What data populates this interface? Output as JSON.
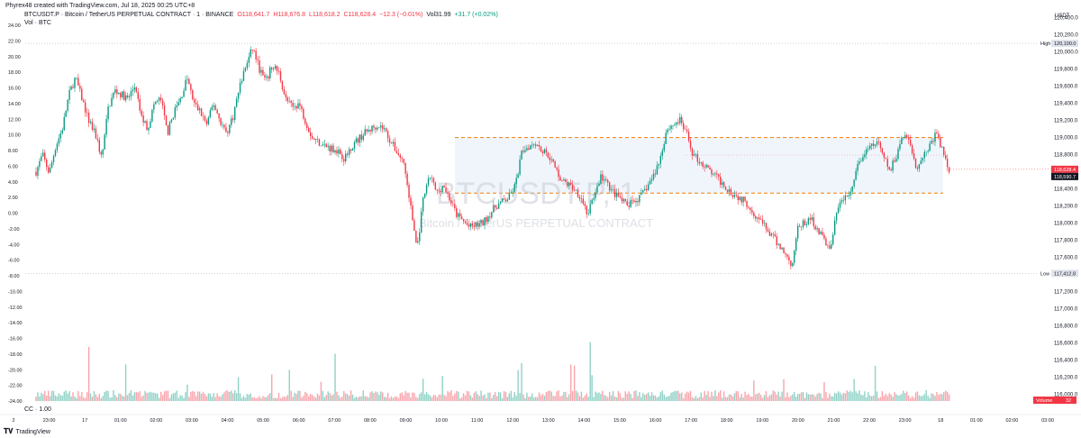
{
  "header": {
    "created_by": "Phyrex48 created with TradingView.com, Jul 18, 2025 00:25 UTC+8"
  },
  "legend": {
    "symbol": "BTCUSDT.P · Bitcoin / TetherUS PERPETUAL CONTRACT · 1 · BINANCE",
    "open": "O118,641.7",
    "high": "H118,676.8",
    "low": "L118,618.2",
    "close": "C118,628.4",
    "change": "−12.3 (−0.01%)",
    "vol": "Vol31.99",
    "vol_change": "+31.7 (+0.02%)"
  },
  "vol_legend": "Vol · BTC",
  "cc_legend": "CC · 1.00",
  "watermark": {
    "line1": "BTCUSDT.P, 1",
    "line2": "Bitcoin / TetherUS PERPETUAL CONTRACT"
  },
  "footer": {
    "logo": "TradingView"
  },
  "colors": {
    "up": "#089981",
    "down": "#f23645",
    "level": "#f57c00",
    "zone": "#e3ecf9"
  },
  "chart_data": {
    "type": "candlestick",
    "symbol": "BTCUSDT.P",
    "interval": "1",
    "exchange": "BINANCE",
    "price_axis": {
      "title": "USDT",
      "ticks": [
        "120,400.0",
        "120,200.0",
        "120,000.0",
        "119,800.0",
        "119,600.0",
        "119,400.0",
        "119,200.0",
        "119,000.0",
        "118,800.0",
        "118,600.0",
        "118,400.0",
        "118,200.0",
        "118,000.0",
        "117,800.0",
        "117,600.0",
        "117,400.0",
        "117,200.0",
        "117,000.0",
        "116,800.0",
        "116,600.0",
        "116,400.0",
        "116,200.0",
        "116,000.0"
      ],
      "ylim": [
        115,
        900,
        120,
        480
      ]
    },
    "left_axis": {
      "ticks": [
        "24.00",
        "22.00",
        "20.00",
        "18.00",
        "16.00",
        "14.00",
        "12.00",
        "10.00",
        "8.00",
        "6.00",
        "4.00",
        "2.00",
        "0.00",
        "-2.00",
        "-4.00",
        "-6.00",
        "-8.00",
        "-10.00",
        "-12.00",
        "-14.00",
        "-16.00",
        "-18.00",
        "-20.00",
        "-22.00",
        "-24.00"
      ]
    },
    "time_axis": [
      "2",
      "23:00",
      "17",
      "01:00",
      "02:00",
      "03:00",
      "04:00",
      "05:00",
      "06:00",
      "07:00",
      "08:00",
      "09:00",
      "10:00",
      "11:00",
      "12:00",
      "13:00",
      "14:00",
      "15:00",
      "16:00",
      "17:00",
      "18:00",
      "19:00",
      "20:00",
      "21:00",
      "22:00",
      "23:00",
      "18",
      "01:00",
      "02:00",
      "03:00"
    ],
    "high": {
      "label": "High",
      "value": "120,100.0"
    },
    "low": {
      "label": "Low",
      "value": "117,412.8"
    },
    "last_price": "118,628.4",
    "last_price2": "118,590.7",
    "volume_badge": {
      "label": "Volume",
      "value": "32"
    },
    "levels": [
      119000,
      118350
    ],
    "price_path": [
      [
        0,
        118600
      ],
      [
        0.5,
        118800
      ],
      [
        1,
        118580
      ],
      [
        1.5,
        118900
      ],
      [
        2,
        119100
      ],
      [
        2.5,
        119500
      ],
      [
        3,
        119700
      ],
      [
        3.5,
        119450
      ],
      [
        4,
        119200
      ],
      [
        4.6,
        119000
      ],
      [
        5,
        118750
      ],
      [
        5.5,
        119350
      ],
      [
        6,
        119550
      ],
      [
        7,
        119450
      ],
      [
        7.5,
        119600
      ],
      [
        8,
        119250
      ],
      [
        8.5,
        119100
      ],
      [
        9,
        119400
      ],
      [
        9.5,
        119450
      ],
      [
        10,
        119050
      ],
      [
        10.5,
        119300
      ],
      [
        11,
        119450
      ],
      [
        11.5,
        119700
      ],
      [
        12,
        119400
      ],
      [
        12.5,
        119300
      ],
      [
        13,
        119150
      ],
      [
        13.5,
        119400
      ],
      [
        14,
        119200
      ],
      [
        14.5,
        119050
      ],
      [
        15,
        119250
      ],
      [
        15.5,
        119600
      ],
      [
        16,
        119850
      ],
      [
        16.5,
        120050
      ],
      [
        17,
        119800
      ],
      [
        17.5,
        119650
      ],
      [
        18,
        119850
      ],
      [
        18.5,
        119750
      ],
      [
        19,
        119450
      ],
      [
        19.5,
        119350
      ],
      [
        20,
        119400
      ],
      [
        20.5,
        119200
      ],
      [
        21,
        119000
      ],
      [
        21.5,
        118950
      ],
      [
        22,
        118900
      ],
      [
        23,
        118850
      ],
      [
        23.5,
        118750
      ],
      [
        24,
        118900
      ],
      [
        25,
        119050
      ],
      [
        26,
        119150
      ],
      [
        26.5,
        119100
      ],
      [
        27,
        118950
      ],
      [
        28,
        118700
      ],
      [
        28.5,
        118200
      ],
      [
        29,
        117700
      ],
      [
        29.5,
        118300
      ],
      [
        30,
        118550
      ],
      [
        30.5,
        118350
      ],
      [
        31,
        118450
      ],
      [
        32,
        118100
      ],
      [
        33,
        117950
      ],
      [
        34,
        118000
      ],
      [
        35,
        118200
      ],
      [
        36,
        118300
      ],
      [
        36.5,
        118450
      ],
      [
        37,
        118850
      ],
      [
        38,
        118950
      ],
      [
        38.5,
        118850
      ],
      [
        39,
        118800
      ],
      [
        40,
        118500
      ],
      [
        41,
        118400
      ],
      [
        41.5,
        118300
      ],
      [
        42,
        118100
      ],
      [
        43,
        118550
      ],
      [
        43.5,
        118450
      ],
      [
        44,
        118350
      ],
      [
        45,
        118200
      ],
      [
        46,
        118300
      ],
      [
        47,
        118550
      ],
      [
        47.5,
        118750
      ],
      [
        48,
        119100
      ],
      [
        49,
        119200
      ],
      [
        49.5,
        119050
      ],
      [
        50,
        118800
      ],
      [
        51,
        118650
      ],
      [
        52,
        118500
      ],
      [
        53,
        118350
      ],
      [
        54,
        118250
      ],
      [
        55,
        118050
      ],
      [
        56,
        117850
      ],
      [
        57,
        117650
      ],
      [
        57.5,
        117500
      ],
      [
        58,
        117950
      ],
      [
        59,
        118050
      ],
      [
        60,
        117800
      ],
      [
        60.5,
        117700
      ],
      [
        61,
        118200
      ],
      [
        62,
        118350
      ],
      [
        62.5,
        118650
      ],
      [
        63,
        118800
      ],
      [
        64,
        118950
      ],
      [
        65,
        118600
      ],
      [
        65.5,
        118800
      ],
      [
        66,
        119050
      ],
      [
        66.5,
        118950
      ],
      [
        67,
        118650
      ],
      [
        68,
        118900
      ],
      [
        68.5,
        119050
      ],
      [
        69,
        118850
      ],
      [
        69.5,
        118600
      ]
    ]
  }
}
